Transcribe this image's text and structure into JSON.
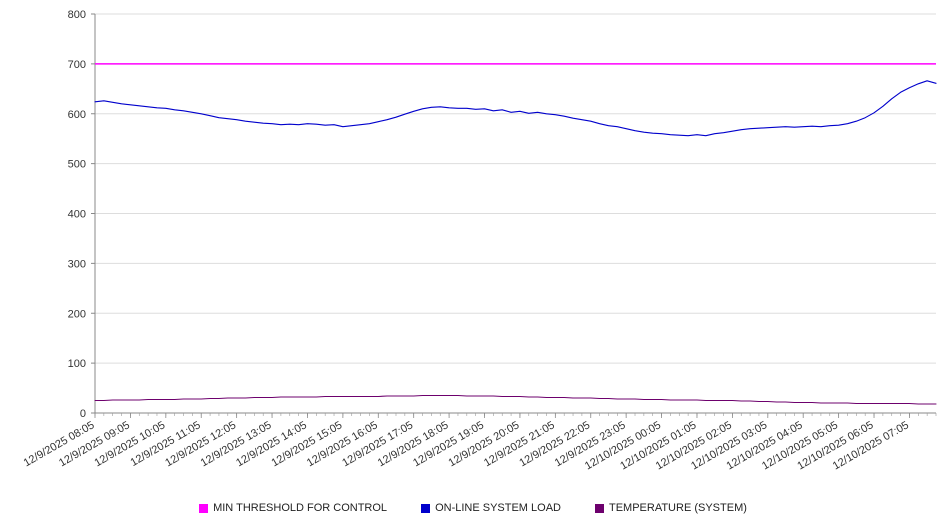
{
  "chart_data": {
    "type": "line",
    "title": "",
    "xlabel": "",
    "ylabel": "",
    "ylim": [
      0,
      800
    ],
    "y_ticks": [
      0,
      100,
      200,
      300,
      400,
      500,
      600,
      700,
      800
    ],
    "grid": true,
    "legend_position": "bottom",
    "points_per_label": 4,
    "x_labels": [
      "12/9/2025 08:05",
      "12/9/2025 09:05",
      "12/9/2025 10:05",
      "12/9/2025 11:05",
      "12/9/2025 12:05",
      "12/9/2025 13:05",
      "12/9/2025 14:05",
      "12/9/2025 15:05",
      "12/9/2025 16:05",
      "12/9/2025 17:05",
      "12/9/2025 18:05",
      "12/9/2025 19:05",
      "12/9/2025 20:05",
      "12/9/2025 21:05",
      "12/9/2025 22:05",
      "12/9/2025 23:05",
      "12/10/2025 00:05",
      "12/10/2025 01:05",
      "12/10/2025 02:05",
      "12/10/2025 03:05",
      "12/10/2025 04:05",
      "12/10/2025 05:05",
      "12/10/2025 06:05",
      "12/10/2025 07:05"
    ],
    "series": [
      {
        "name": "MIN THRESHOLD FOR CONTROL",
        "color": "#ff00ff",
        "constant": 700
      },
      {
        "name": "ON-LINE SYSTEM LOAD",
        "color": "#0000cc",
        "values": [
          624,
          626,
          623,
          620,
          618,
          616,
          614,
          612,
          611,
          608,
          606,
          603,
          600,
          596,
          592,
          590,
          588,
          585,
          583,
          581,
          580,
          578,
          579,
          578,
          580,
          579,
          577,
          578,
          574,
          576,
          578,
          580,
          584,
          588,
          593,
          599,
          605,
          610,
          613,
          614,
          612,
          611,
          611,
          609,
          610,
          606,
          608,
          603,
          605,
          601,
          603,
          600,
          598,
          595,
          591,
          588,
          585,
          580,
          576,
          574,
          570,
          566,
          563,
          561,
          560,
          558,
          557,
          556,
          558,
          556,
          560,
          562,
          565,
          568,
          570,
          571,
          572,
          573,
          574,
          573,
          574,
          575,
          574,
          576,
          577,
          580,
          585,
          592,
          602,
          615,
          630,
          643,
          652,
          660,
          666,
          661
        ]
      },
      {
        "name": "TEMPERATURE (SYSTEM)",
        "color": "#6d006d",
        "values": [
          25,
          25,
          26,
          26,
          26,
          26,
          27,
          27,
          27,
          27,
          28,
          28,
          28,
          29,
          29,
          30,
          30,
          30,
          31,
          31,
          31,
          32,
          32,
          32,
          32,
          32,
          33,
          33,
          33,
          33,
          33,
          33,
          33,
          34,
          34,
          34,
          34,
          35,
          35,
          35,
          35,
          35,
          34,
          34,
          34,
          34,
          33,
          33,
          33,
          32,
          32,
          31,
          31,
          31,
          30,
          30,
          30,
          29,
          29,
          28,
          28,
          28,
          27,
          27,
          27,
          26,
          26,
          26,
          26,
          25,
          25,
          25,
          25,
          24,
          24,
          23,
          23,
          22,
          22,
          21,
          21,
          21,
          20,
          20,
          20,
          20,
          19,
          19,
          19,
          19,
          19,
          19,
          19,
          18,
          18,
          18
        ]
      }
    ]
  }
}
